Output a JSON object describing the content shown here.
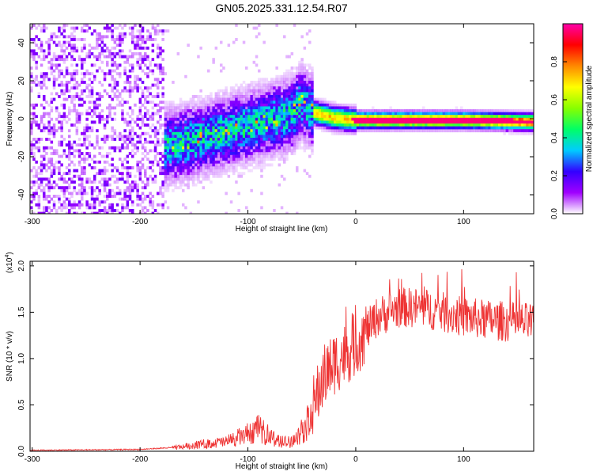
{
  "title": "GN05.2025.331.12.54.R07",
  "chart_data": [
    {
      "type": "heatmap",
      "xlabel": "Height of straight line (km)",
      "ylabel": "Frequency (Hz)",
      "xlim": [
        -302,
        165
      ],
      "ylim": [
        -50,
        50
      ],
      "xticks": [
        -300,
        -200,
        -100,
        0,
        100
      ],
      "yticks": [
        -40,
        -20,
        0,
        20,
        40
      ],
      "grid": false,
      "colorbar": {
        "label": "Normalized spectral amplitude",
        "ticks": [
          "0.0",
          "0.2",
          "0.4",
          "0.6",
          "0.8"
        ],
        "range": [
          0,
          1
        ],
        "colors": [
          "#ffffff",
          "#a000ff",
          "#3300ff",
          "#00ccff",
          "#00ff66",
          "#88ff00",
          "#ffff00",
          "#ff8800",
          "#ff0000",
          "#ff00aa"
        ]
      },
      "ridge": [
        {
          "x": -180,
          "y": -14
        },
        {
          "x": -160,
          "y": -12
        },
        {
          "x": -140,
          "y": -9
        },
        {
          "x": -120,
          "y": -6
        },
        {
          "x": -100,
          "y": -3
        },
        {
          "x": -80,
          "y": 0
        },
        {
          "x": -60,
          "y": 3
        },
        {
          "x": -52,
          "y": 9
        },
        {
          "x": -40,
          "y": 4
        },
        {
          "x": -20,
          "y": 1
        },
        {
          "x": 0,
          "y": 0
        },
        {
          "x": 50,
          "y": 0
        },
        {
          "x": 100,
          "y": 0
        },
        {
          "x": 165,
          "y": -1
        }
      ]
    },
    {
      "type": "line",
      "xlabel": "Height of straight line (km)",
      "ylabel": "SNR (10 * v/v)",
      "scale_label": "(x10",
      "scale_exp": "4",
      "scale_close": ")",
      "xlim": [
        -302,
        165
      ],
      "ylim": [
        0,
        2.05
      ],
      "xticks": [
        -300,
        -200,
        -100,
        0,
        100
      ],
      "yticks": [
        "0.0",
        "0.5",
        "1.0",
        "1.5",
        "2.0"
      ],
      "grid": false,
      "series": [
        {
          "color": "#ee3333",
          "envelope": [
            {
              "x": -302,
              "y": 0.01
            },
            {
              "x": -250,
              "y": 0.015
            },
            {
              "x": -200,
              "y": 0.02
            },
            {
              "x": -170,
              "y": 0.04
            },
            {
              "x": -150,
              "y": 0.08
            },
            {
              "x": -120,
              "y": 0.12
            },
            {
              "x": -100,
              "y": 0.22
            },
            {
              "x": -90,
              "y": 0.28
            },
            {
              "x": -80,
              "y": 0.2
            },
            {
              "x": -70,
              "y": 0.12
            },
            {
              "x": -60,
              "y": 0.12
            },
            {
              "x": -50,
              "y": 0.25
            },
            {
              "x": -40,
              "y": 0.45
            },
            {
              "x": -30,
              "y": 0.8
            },
            {
              "x": -20,
              "y": 0.95
            },
            {
              "x": -10,
              "y": 1.05
            },
            {
              "x": 0,
              "y": 1.15
            },
            {
              "x": 10,
              "y": 1.3
            },
            {
              "x": 20,
              "y": 1.45
            },
            {
              "x": 40,
              "y": 1.55
            },
            {
              "x": 60,
              "y": 1.55
            },
            {
              "x": 80,
              "y": 1.5
            },
            {
              "x": 100,
              "y": 1.45
            },
            {
              "x": 120,
              "y": 1.42
            },
            {
              "x": 140,
              "y": 1.4
            },
            {
              "x": 165,
              "y": 1.38
            }
          ]
        }
      ]
    }
  ]
}
